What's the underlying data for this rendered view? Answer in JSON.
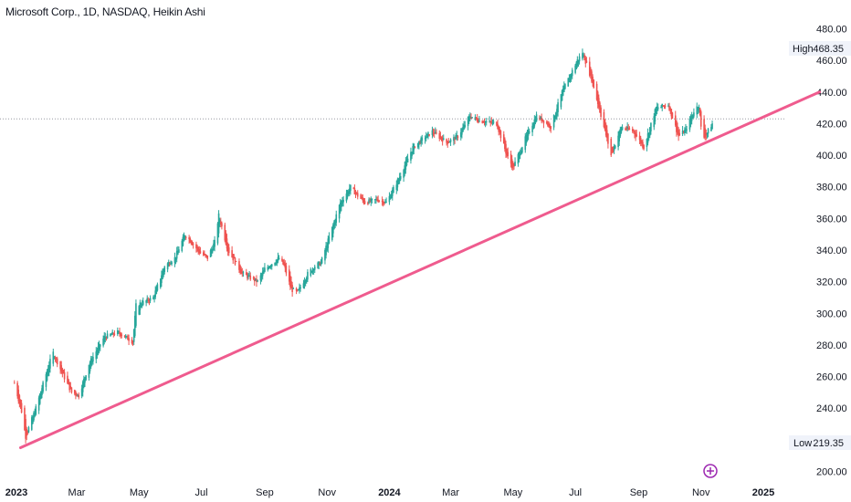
{
  "header": {
    "title": "Microsoft Corp., 1D, NASDAQ, Heikin Ashi"
  },
  "colors": {
    "up": "#26a69a",
    "down": "#ef5350",
    "trendline": "#ef5b8e",
    "event": "#9c27b0"
  },
  "icons": {
    "event_marker": "event-marker-icon"
  },
  "markers": {
    "high": {
      "label": "High",
      "value": "468.35"
    },
    "low": {
      "label": "Low",
      "value": "219.35"
    }
  },
  "chart_data": {
    "type": "candlestick",
    "style": "Heikin Ashi",
    "interval": "1D",
    "ylim": [
      197,
      485
    ],
    "y_ticks": [
      "480.00",
      "460.00",
      "440.00",
      "420.00",
      "400.00",
      "380.00",
      "360.00",
      "340.00",
      "320.00",
      "300.00",
      "280.00",
      "260.00",
      "240.00",
      "220.00",
      "200.00"
    ],
    "x_ticks": [
      {
        "label": "2023",
        "strong": true
      },
      {
        "label": "Mar"
      },
      {
        "label": "May"
      },
      {
        "label": "Jul"
      },
      {
        "label": "Sep"
      },
      {
        "label": "Nov"
      },
      {
        "label": "2024",
        "strong": true
      },
      {
        "label": "Mar"
      },
      {
        "label": "May"
      },
      {
        "label": "Jul"
      },
      {
        "label": "Sep"
      },
      {
        "label": "Nov"
      },
      {
        "label": "2025",
        "strong": true
      }
    ],
    "current_price_line": 423,
    "trendline": {
      "from": [
        "2023-01-05",
        215
      ],
      "to": [
        "2025-02-25",
        440
      ]
    },
    "price_path": [
      [
        "2022-12-30",
        256
      ],
      [
        "2023-01-06",
        238
      ],
      [
        "2023-01-10",
        222
      ],
      [
        "2023-01-20",
        240
      ],
      [
        "2023-02-02",
        268
      ],
      [
        "2023-02-06",
        275
      ],
      [
        "2023-02-15",
        262
      ],
      [
        "2023-02-24",
        250
      ],
      [
        "2023-03-03",
        248
      ],
      [
        "2023-03-13",
        268
      ],
      [
        "2023-03-28",
        285
      ],
      [
        "2023-04-10",
        288
      ],
      [
        "2023-04-25",
        282
      ],
      [
        "2023-04-28",
        305
      ],
      [
        "2023-05-15",
        310
      ],
      [
        "2023-05-26",
        330
      ],
      [
        "2023-06-05",
        335
      ],
      [
        "2023-06-15",
        350
      ],
      [
        "2023-06-30",
        338
      ],
      [
        "2023-07-07",
        335
      ],
      [
        "2023-07-14",
        345
      ],
      [
        "2023-07-18",
        362
      ],
      [
        "2023-07-27",
        340
      ],
      [
        "2023-08-10",
        325
      ],
      [
        "2023-08-25",
        320
      ],
      [
        "2023-09-01",
        328
      ],
      [
        "2023-09-15",
        335
      ],
      [
        "2023-09-20",
        330
      ],
      [
        "2023-09-27",
        315
      ],
      [
        "2023-10-03",
        313
      ],
      [
        "2023-10-13",
        325
      ],
      [
        "2023-10-20",
        330
      ],
      [
        "2023-10-26",
        332
      ],
      [
        "2023-11-03",
        348
      ],
      [
        "2023-11-14",
        370
      ],
      [
        "2023-11-24",
        380
      ],
      [
        "2023-11-30",
        375
      ],
      [
        "2023-12-08",
        370
      ],
      [
        "2023-12-20",
        372
      ],
      [
        "2023-12-29",
        370
      ],
      [
        "2024-01-10",
        385
      ],
      [
        "2024-01-24",
        405
      ],
      [
        "2024-02-02",
        410
      ],
      [
        "2024-02-12",
        415
      ],
      [
        "2024-02-26",
        408
      ],
      [
        "2024-03-08",
        412
      ],
      [
        "2024-03-20",
        425
      ],
      [
        "2024-03-28",
        422
      ],
      [
        "2024-04-15",
        420
      ],
      [
        "2024-04-25",
        400
      ],
      [
        "2024-05-01",
        392
      ],
      [
        "2024-05-14",
        412
      ],
      [
        "2024-05-24",
        425
      ],
      [
        "2024-06-07",
        418
      ],
      [
        "2024-06-18",
        440
      ],
      [
        "2024-07-03",
        460
      ],
      [
        "2024-07-08",
        465
      ],
      [
        "2024-07-17",
        448
      ],
      [
        "2024-07-25",
        428
      ],
      [
        "2024-08-05",
        400
      ],
      [
        "2024-08-15",
        418
      ],
      [
        "2024-08-27",
        415
      ],
      [
        "2024-09-06",
        405
      ],
      [
        "2024-09-18",
        430
      ],
      [
        "2024-09-30",
        432
      ],
      [
        "2024-10-10",
        412
      ],
      [
        "2024-10-17",
        416
      ],
      [
        "2024-10-25",
        428
      ],
      [
        "2024-10-30",
        432
      ],
      [
        "2024-11-02",
        410
      ],
      [
        "2024-11-06",
        413
      ],
      [
        "2024-11-12",
        420
      ]
    ]
  }
}
